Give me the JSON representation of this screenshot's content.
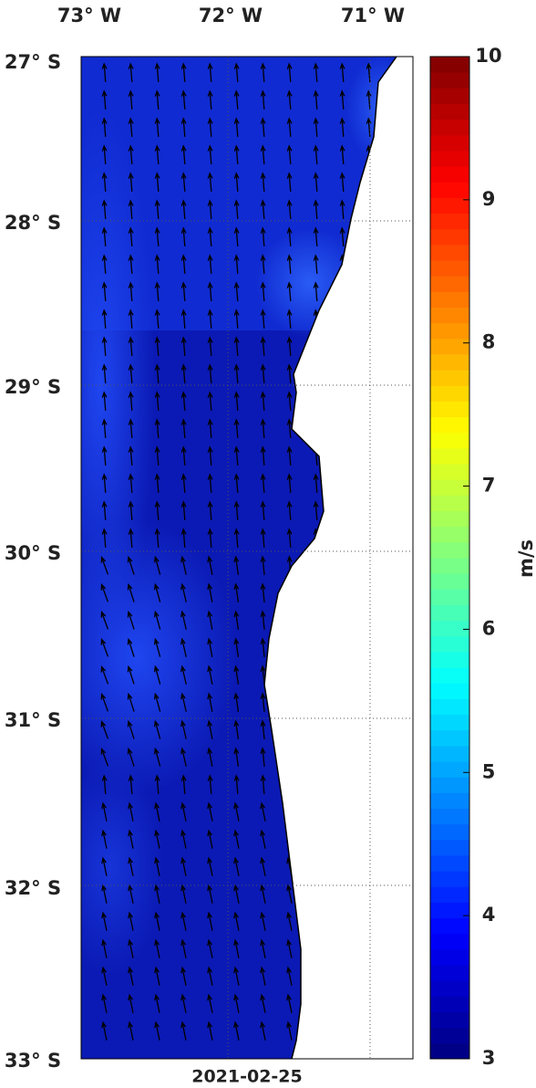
{
  "map": {
    "lon_labels": [
      "73° W",
      "72° W",
      "71° W"
    ],
    "lat_labels": [
      "27° S",
      "28° S",
      "29° S",
      "30° S",
      "31° S",
      "32° S",
      "33° S"
    ],
    "date": "2021-02-25"
  },
  "colorbar": {
    "label": "m/s",
    "range": [
      3,
      10
    ],
    "ticks": [
      3,
      4,
      5,
      6,
      7,
      8,
      9,
      10
    ]
  }
}
